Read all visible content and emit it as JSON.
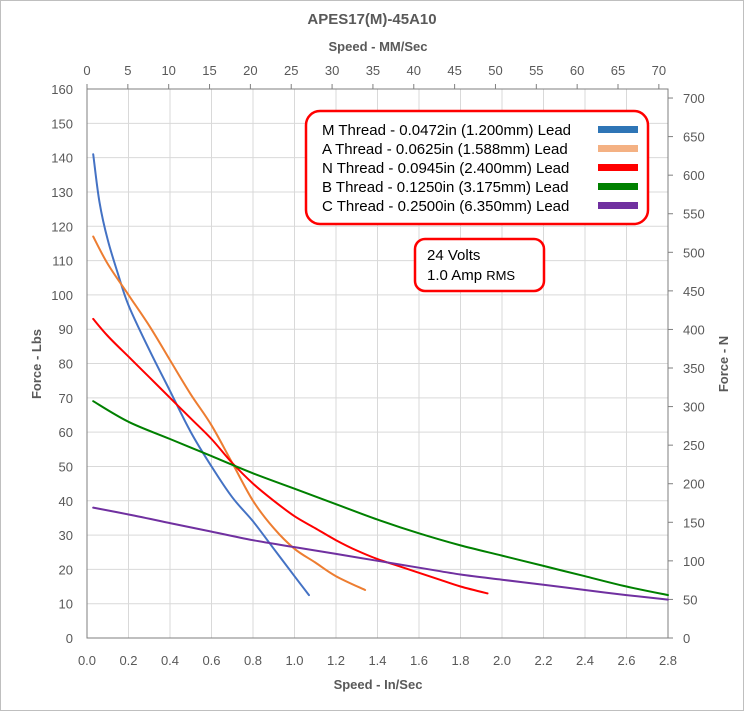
{
  "chart_data": {
    "type": "line",
    "title": "APES17(M)-45A10",
    "xlabel": "Speed - In/Sec",
    "x2label": "Speed - MM/Sec",
    "ylabel": "Force - Lbs",
    "y2label": "Force - N",
    "xlim": [
      0,
      2.8
    ],
    "x_ticks": [
      "0.0",
      "0.2",
      "0.4",
      "0.6",
      "0.8",
      "1.0",
      "1.2",
      "1.4",
      "1.6",
      "1.8",
      "2.0",
      "2.2",
      "2.4",
      "2.6",
      "2.8"
    ],
    "ylim": [
      0,
      160
    ],
    "y_ticks": [
      "0",
      "10",
      "20",
      "30",
      "40",
      "50",
      "60",
      "70",
      "80",
      "90",
      "100",
      "110",
      "120",
      "130",
      "140",
      "150",
      "160"
    ],
    "x2lim": [
      0,
      71.12
    ],
    "x2_ticks": [
      "0",
      "5",
      "10",
      "15",
      "20",
      "25",
      "30",
      "35",
      "40",
      "45",
      "50",
      "55",
      "60",
      "65",
      "70"
    ],
    "y2lim": [
      0,
      711.7
    ],
    "y2_ticks": [
      "0",
      "50",
      "100",
      "150",
      "200",
      "250",
      "300",
      "350",
      "400",
      "450",
      "500",
      "550",
      "600",
      "650",
      "700"
    ],
    "grid": true,
    "legend_position": "top-right",
    "annotation": {
      "line1": "24 Volts",
      "line2_main": "1.0 Amp ",
      "line2_small": "RMS"
    },
    "series": [
      {
        "name": "M Thread - 0.0472in (1.200mm) Lead",
        "color": "#4472c4",
        "legend_color": "#2e75b6",
        "x": [
          0.03,
          0.06,
          0.1,
          0.15,
          0.2,
          0.3,
          0.4,
          0.5,
          0.6,
          0.7,
          0.8,
          0.9,
          1.0,
          1.07
        ],
        "y": [
          141,
          127,
          116,
          106,
          97,
          84,
          72,
          60,
          50,
          41,
          34,
          26,
          18,
          12.5
        ]
      },
      {
        "name": "A Thread - 0.0625in (1.588mm) Lead",
        "color": "#ed7d31",
        "legend_color": "#f4b183",
        "x": [
          0.03,
          0.1,
          0.2,
          0.3,
          0.4,
          0.5,
          0.6,
          0.7,
          0.8,
          0.9,
          1.0,
          1.1,
          1.2,
          1.34
        ],
        "y": [
          117,
          109,
          100,
          91,
          81,
          71,
          62,
          51,
          40,
          32,
          26,
          22,
          18,
          14
        ]
      },
      {
        "name": "N Thread - 0.0945in (2.400mm) Lead",
        "color": "#ff0000",
        "legend_color": "#ff0000",
        "x": [
          0.03,
          0.1,
          0.2,
          0.3,
          0.4,
          0.5,
          0.6,
          0.7,
          0.8,
          0.9,
          1.0,
          1.1,
          1.2,
          1.3,
          1.4,
          1.5,
          1.6,
          1.7,
          1.8,
          1.93
        ],
        "y": [
          93,
          88,
          82,
          76,
          70,
          64,
          58,
          51,
          45,
          40,
          35.5,
          32,
          28.5,
          25.5,
          23,
          21,
          19,
          17,
          15,
          13
        ]
      },
      {
        "name": "B Thread - 0.1250in (3.175mm) Lead",
        "color": "#008000",
        "legend_color": "#008000",
        "x": [
          0.03,
          0.2,
          0.4,
          0.6,
          0.8,
          1.0,
          1.2,
          1.4,
          1.6,
          1.8,
          2.0,
          2.2,
          2.4,
          2.6,
          2.8
        ],
        "y": [
          69,
          63,
          58,
          53,
          48,
          43.5,
          39,
          34.5,
          30.5,
          27,
          24,
          21,
          18,
          15,
          12.5
        ]
      },
      {
        "name": "C Thread - 0.2500in (6.350mm) Lead",
        "color": "#7030a0",
        "legend_color": "#7030a0",
        "x": [
          0.03,
          0.2,
          0.4,
          0.6,
          0.8,
          1.0,
          1.2,
          1.4,
          1.6,
          1.8,
          2.0,
          2.2,
          2.4,
          2.6,
          2.8
        ],
        "y": [
          38,
          36,
          33.5,
          31,
          28.5,
          26.5,
          24.5,
          22.5,
          20.5,
          18.5,
          17,
          15.5,
          14,
          12.5,
          11.2
        ]
      }
    ]
  }
}
